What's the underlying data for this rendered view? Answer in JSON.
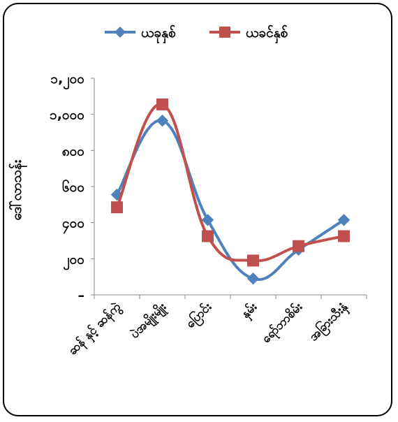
{
  "chart_data": {
    "type": "line",
    "ylabel": "ဒေါ်လာသန်း",
    "y_ticks": [
      "–",
      "၂၀၀",
      "၄၀၀",
      "၆၀၀",
      "၈၀၀",
      "၁,၀၀၀",
      "၁,၂၀၀"
    ],
    "ylim": [
      0,
      1200
    ],
    "categories": [
      "ဆန် နှင့် ဆန်ကွဲ",
      "ပဲအမျိုးမျိုး",
      "ပြောင်း",
      "နှမ်း",
      "ရော်ဘာစိမ်း",
      "အခြားသီးနှံ"
    ],
    "series": [
      {
        "name": "ယခုနှစ်",
        "color": "#4F81BD",
        "marker": "diamond",
        "values": [
          555,
          965,
          415,
          90,
          250,
          415
        ]
      },
      {
        "name": "ယခင်နှစ်",
        "color": "#C0504D",
        "marker": "square",
        "values": [
          485,
          1055,
          325,
          190,
          270,
          325
        ]
      }
    ],
    "legend": "top",
    "grid": false
  }
}
